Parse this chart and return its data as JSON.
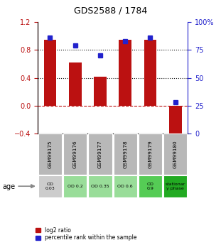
{
  "title": "GDS2588 / 1784",
  "samples": [
    "GSM99175",
    "GSM99176",
    "GSM99177",
    "GSM99178",
    "GSM99179",
    "GSM99180"
  ],
  "log2_ratio": [
    0.95,
    0.62,
    0.42,
    0.95,
    0.95,
    -0.52
  ],
  "percentile_rank": [
    86,
    79,
    70,
    83,
    86,
    28
  ],
  "ylim_left": [
    -0.4,
    1.2
  ],
  "ylim_right": [
    0,
    100
  ],
  "bar_color": "#bb1111",
  "dot_color": "#2222cc",
  "age_labels": [
    "OD\n0.03",
    "OD 0.2",
    "OD 0.35",
    "OD 0.6",
    "OD\n0.9",
    "stationar\ny phase"
  ],
  "age_colors": [
    "#cccccc",
    "#99dd99",
    "#99dd99",
    "#99dd99",
    "#55cc55",
    "#22aa22"
  ],
  "sample_bg_color": "#b8b8b8",
  "hline_color": "#bb1111",
  "dotted_color": "#111111",
  "left_tick_color": "#bb1111",
  "right_tick_color": "#2222cc",
  "yticks_left": [
    -0.4,
    0.0,
    0.4,
    0.8,
    1.2
  ],
  "yticks_right": [
    0,
    25,
    50,
    75,
    100
  ],
  "ytick_labels_right": [
    "0",
    "25",
    "50",
    "75",
    "100%"
  ],
  "bar_width": 0.5
}
